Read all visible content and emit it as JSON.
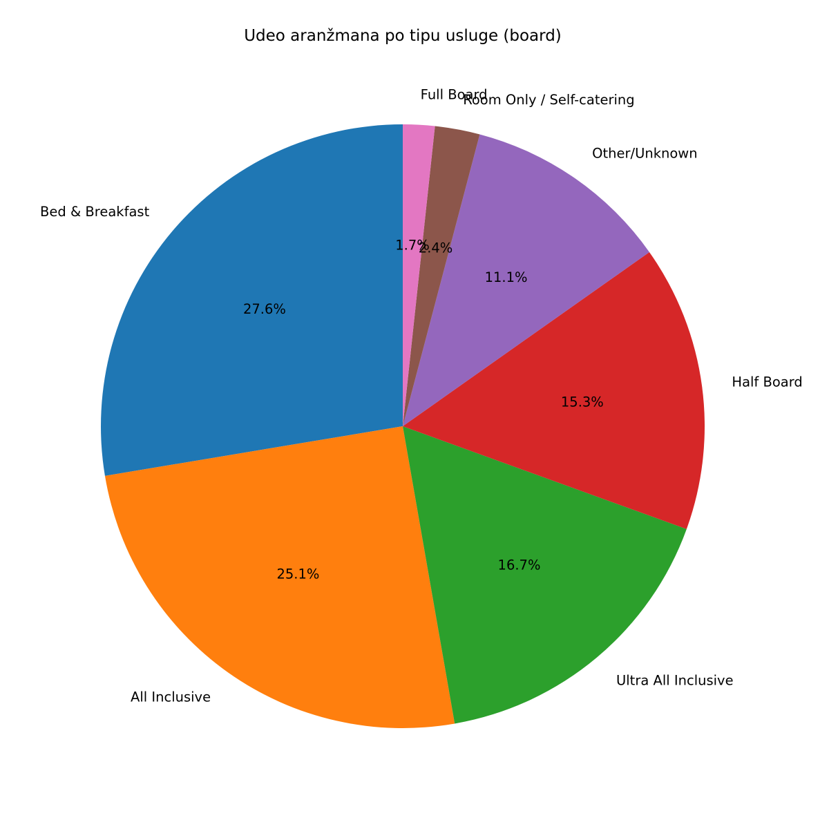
{
  "chart_data": {
    "type": "pie",
    "title": "Udeo aranžmana po tipu usluge (board)",
    "start_angle_deg": 90,
    "direction": "counterclockwise",
    "slices": [
      {
        "label": "Bed & Breakfast",
        "value": 27.6,
        "pct_label": "27.6%",
        "color": "#1f77b4"
      },
      {
        "label": "All Inclusive",
        "value": 25.1,
        "pct_label": "25.1%",
        "color": "#ff7f0e"
      },
      {
        "label": "Ultra All Inclusive",
        "value": 16.7,
        "pct_label": "16.7%",
        "color": "#2ca02c"
      },
      {
        "label": "Half Board",
        "value": 15.3,
        "pct_label": "15.3%",
        "color": "#d62728"
      },
      {
        "label": "Other/Unknown",
        "value": 11.1,
        "pct_label": "11.1%",
        "color": "#9467bd"
      },
      {
        "label": "Room Only / Self-catering",
        "value": 2.4,
        "pct_label": "2.4%",
        "color": "#8c564b"
      },
      {
        "label": "Full Board",
        "value": 1.7,
        "pct_label": "1.7%",
        "color": "#e377c2"
      }
    ]
  }
}
